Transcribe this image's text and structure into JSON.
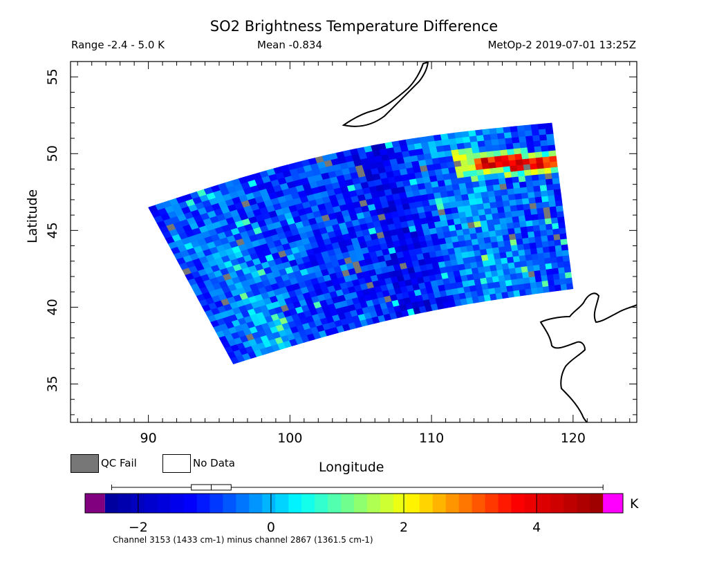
{
  "chart_data": {
    "type": "heatmap",
    "title": "SO2 Brightness Temperature Difference",
    "range_text": "Range -2.4 - 5.0 K",
    "mean_text": "Mean -0.834",
    "satellite_text": "MetOp-2 2019-07-01 13:25Z",
    "xlabel": "Longitude",
    "ylabel": "Latitude",
    "xlim": [
      84.5,
      124.5
    ],
    "ylim": [
      32.5,
      56
    ],
    "xticks": [
      90,
      100,
      110,
      120
    ],
    "yticks": [
      35,
      40,
      45,
      50,
      55
    ],
    "swath_corners": {
      "northwest": [
        90.0,
        46.5
      ],
      "northeast": [
        118.5,
        52.0
      ],
      "southeast": [
        120.0,
        41.2
      ],
      "southwest": [
        96.0,
        36.3
      ]
    },
    "hot_spot": {
      "lon_range": [
        113,
        119
      ],
      "lat": 49.4,
      "value_range": [
        3.0,
        4.6
      ]
    },
    "swath_seed": 17,
    "colorbar": {
      "min": -2.8,
      "max": 5.3,
      "ticks": [
        -2,
        0,
        2,
        4
      ],
      "tick_labels": [
        "−2",
        "0",
        "2",
        "4"
      ],
      "unit": "K",
      "under_color": "#800080",
      "over_color": "#ff00ff",
      "colors": [
        "#000080",
        "#0000ff",
        "#00ffff",
        "#ffff00",
        "#ff0000",
        "#800000"
      ],
      "boxplot": {
        "whisker_low": -2.4,
        "q1": -1.2,
        "median": -0.9,
        "q3": -0.6,
        "whisker_high": 5.0
      },
      "caption": "Channel 3153 (1433 cm-1) minus channel 2867 (1361.5 cm-1)"
    },
    "legend": {
      "qc_fail_label": "QC Fail",
      "no_data_label": "No Data",
      "qc_fail_color": "#777777",
      "no_data_color": "#ffffff"
    }
  }
}
